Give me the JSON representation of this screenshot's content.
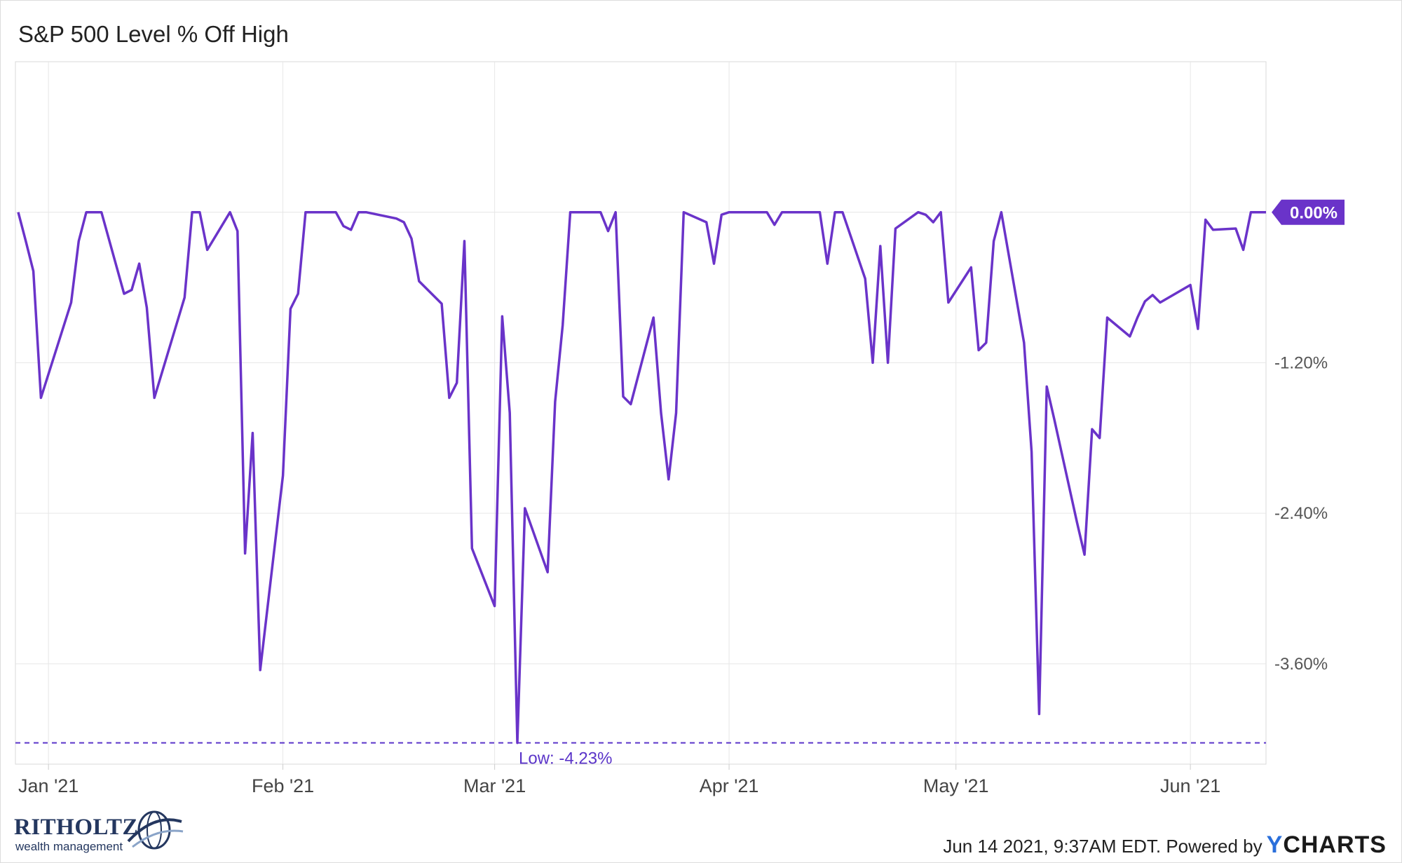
{
  "chart_data": {
    "type": "line",
    "title": "S&P 500 Level % Off High",
    "x_range": [
      "2020-12-28",
      "2021-06-11"
    ],
    "x_ticks": [
      {
        "date": "2021-01-01",
        "label": "Jan '21"
      },
      {
        "date": "2021-02-01",
        "label": "Feb '21"
      },
      {
        "date": "2021-03-01",
        "label": "Mar '21"
      },
      {
        "date": "2021-04-01",
        "label": "Apr '21"
      },
      {
        "date": "2021-05-01",
        "label": "May '21"
      },
      {
        "date": "2021-06-01",
        "label": "Jun '21"
      }
    ],
    "y_ticks": [
      {
        "value": -1.2,
        "label": "-1.20%"
      },
      {
        "value": -2.4,
        "label": "-2.40%"
      },
      {
        "value": -3.6,
        "label": "-3.60%"
      }
    ],
    "ylim": [
      -4.4,
      1.2
    ],
    "grid": true,
    "series": [
      {
        "color": "#6a33c9",
        "last_value_label": "0.00%",
        "points": [
          [
            "2020-12-28",
            0.0
          ],
          [
            "2020-12-29",
            -0.23
          ],
          [
            "2020-12-30",
            -0.47
          ],
          [
            "2020-12-31",
            -1.48
          ],
          [
            "2021-01-04",
            -0.72
          ],
          [
            "2021-01-05",
            -0.23
          ],
          [
            "2021-01-06",
            0.0
          ],
          [
            "2021-01-07",
            0.0
          ],
          [
            "2021-01-08",
            0.0
          ],
          [
            "2021-01-11",
            -0.65
          ],
          [
            "2021-01-12",
            -0.62
          ],
          [
            "2021-01-13",
            -0.41
          ],
          [
            "2021-01-14",
            -0.76
          ],
          [
            "2021-01-15",
            -1.48
          ],
          [
            "2021-01-19",
            -0.68
          ],
          [
            "2021-01-20",
            0.0
          ],
          [
            "2021-01-21",
            0.0
          ],
          [
            "2021-01-22",
            -0.3
          ],
          [
            "2021-01-25",
            0.0
          ],
          [
            "2021-01-26",
            -0.15
          ],
          [
            "2021-01-27",
            -2.72
          ],
          [
            "2021-01-28",
            -1.76
          ],
          [
            "2021-01-29",
            -3.65
          ],
          [
            "2021-02-01",
            -2.1
          ],
          [
            "2021-02-02",
            -0.77
          ],
          [
            "2021-02-03",
            -0.65
          ],
          [
            "2021-02-04",
            0.0
          ],
          [
            "2021-02-05",
            0.0
          ],
          [
            "2021-02-08",
            0.0
          ],
          [
            "2021-02-09",
            -0.11
          ],
          [
            "2021-02-10",
            -0.14
          ],
          [
            "2021-02-11",
            0.0
          ],
          [
            "2021-02-12",
            0.0
          ],
          [
            "2021-02-16",
            -0.05
          ],
          [
            "2021-02-17",
            -0.08
          ],
          [
            "2021-02-18",
            -0.21
          ],
          [
            "2021-02-19",
            -0.55
          ],
          [
            "2021-02-22",
            -0.73
          ],
          [
            "2021-02-23",
            -1.48
          ],
          [
            "2021-02-24",
            -1.36
          ],
          [
            "2021-02-25",
            -0.23
          ],
          [
            "2021-02-26",
            -2.68
          ],
          [
            "2021-03-01",
            -3.14
          ],
          [
            "2021-03-02",
            -0.83
          ],
          [
            "2021-03-03",
            -1.6
          ],
          [
            "2021-03-04",
            -4.23
          ],
          [
            "2021-03-05",
            -2.36
          ],
          [
            "2021-03-08",
            -2.87
          ],
          [
            "2021-03-09",
            -1.51
          ],
          [
            "2021-03-10",
            -0.9
          ],
          [
            "2021-03-11",
            0.0
          ],
          [
            "2021-03-12",
            0.0
          ],
          [
            "2021-03-15",
            0.0
          ],
          [
            "2021-03-16",
            -0.15
          ],
          [
            "2021-03-17",
            0.0
          ],
          [
            "2021-03-18",
            -1.47
          ],
          [
            "2021-03-19",
            -1.53
          ],
          [
            "2021-03-22",
            -0.84
          ],
          [
            "2021-03-23",
            -1.6
          ],
          [
            "2021-03-24",
            -2.13
          ],
          [
            "2021-03-25",
            -1.6
          ],
          [
            "2021-03-26",
            0.0
          ],
          [
            "2021-03-29",
            -0.08
          ],
          [
            "2021-03-30",
            -0.41
          ],
          [
            "2021-03-31",
            -0.02
          ],
          [
            "2021-04-01",
            0.0
          ],
          [
            "2021-04-05",
            0.0
          ],
          [
            "2021-04-06",
            0.0
          ],
          [
            "2021-04-07",
            -0.1
          ],
          [
            "2021-04-08",
            0.0
          ],
          [
            "2021-04-09",
            0.0
          ],
          [
            "2021-04-12",
            0.0
          ],
          [
            "2021-04-13",
            0.0
          ],
          [
            "2021-04-14",
            -0.41
          ],
          [
            "2021-04-15",
            0.0
          ],
          [
            "2021-04-16",
            0.0
          ],
          [
            "2021-04-19",
            -0.53
          ],
          [
            "2021-04-20",
            -1.2
          ],
          [
            "2021-04-21",
            -0.27
          ],
          [
            "2021-04-22",
            -1.2
          ],
          [
            "2021-04-23",
            -0.13
          ],
          [
            "2021-04-26",
            0.0
          ],
          [
            "2021-04-27",
            -0.02
          ],
          [
            "2021-04-28",
            -0.08
          ],
          [
            "2021-04-29",
            0.0
          ],
          [
            "2021-04-30",
            -0.72
          ],
          [
            "2021-05-03",
            -0.44
          ],
          [
            "2021-05-04",
            -1.1
          ],
          [
            "2021-05-05",
            -1.04
          ],
          [
            "2021-05-06",
            -0.23
          ],
          [
            "2021-05-07",
            0.0
          ],
          [
            "2021-05-10",
            -1.04
          ],
          [
            "2021-05-11",
            -1.91
          ],
          [
            "2021-05-12",
            -4.0
          ],
          [
            "2021-05-13",
            -1.39
          ],
          [
            "2021-05-14",
            -1.65
          ],
          [
            "2021-05-17",
            -2.47
          ],
          [
            "2021-05-18",
            -2.73
          ],
          [
            "2021-05-19",
            -1.73
          ],
          [
            "2021-05-20",
            -1.8
          ],
          [
            "2021-05-21",
            -0.84
          ],
          [
            "2021-05-24",
            -0.99
          ],
          [
            "2021-05-25",
            -0.84
          ],
          [
            "2021-05-26",
            -0.71
          ],
          [
            "2021-05-27",
            -0.66
          ],
          [
            "2021-05-28",
            -0.72
          ],
          [
            "2021-06-01",
            -0.58
          ],
          [
            "2021-06-02",
            -0.93
          ],
          [
            "2021-06-03",
            -0.06
          ],
          [
            "2021-06-04",
            -0.14
          ],
          [
            "2021-06-07",
            -0.13
          ],
          [
            "2021-06-08",
            -0.3
          ],
          [
            "2021-06-09",
            0.0
          ],
          [
            "2021-06-10",
            0.0
          ],
          [
            "2021-06-11",
            0.0
          ]
        ]
      }
    ],
    "low_line": {
      "value": -4.23,
      "label": "Low: -4.23%"
    },
    "stamp": "Jun 14 2021, 9:37AM EDT.",
    "powered_by": "Powered by",
    "brand": {
      "y": "Y",
      "rest": "CHARTS"
    },
    "logo": {
      "name": "RITHOLTZ",
      "sub": "wealth management"
    }
  },
  "colors": {
    "line": "#6a33c9",
    "grid": "#e6e6e6",
    "low_line": "#5b35c9"
  }
}
